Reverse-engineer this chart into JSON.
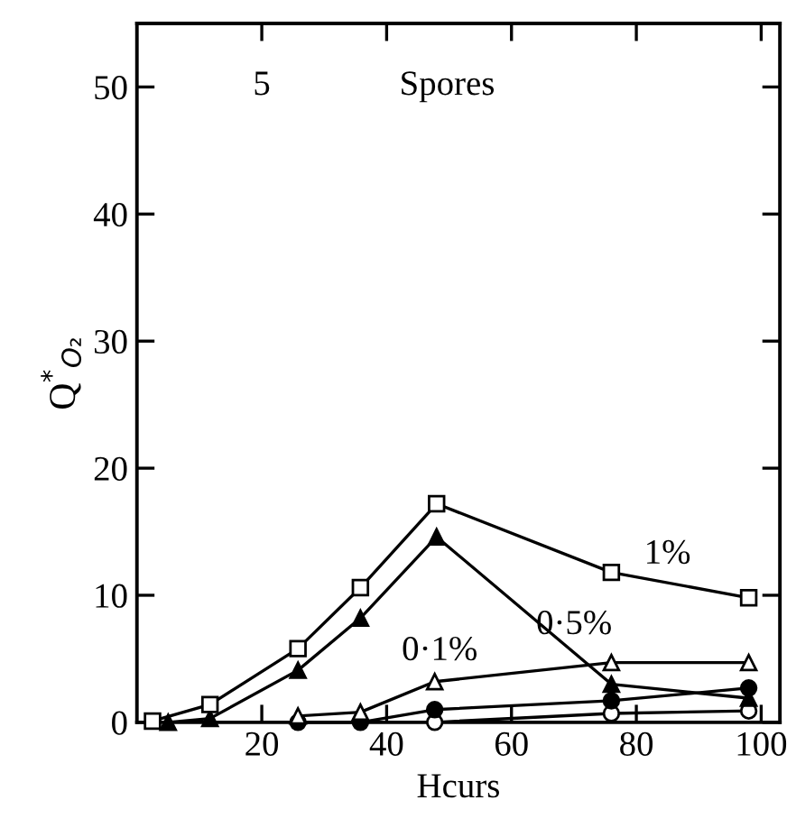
{
  "chart_data": {
    "type": "line",
    "xlabel": "Hcurs",
    "ylabel": "Q$^{*}$$_{O₂}$",
    "xlim": [
      0,
      103
    ],
    "ylim": [
      0,
      55
    ],
    "xticks": [
      20,
      40,
      60,
      80,
      100
    ],
    "yticks": [
      0,
      10,
      20,
      30,
      40,
      50
    ],
    "grid": false,
    "legend": false,
    "line_style": "solid",
    "series": [
      {
        "name": "1%",
        "color": "#000000",
        "marker": "square",
        "x": [
          2.5,
          11.7,
          25.8,
          35.8,
          48,
          76,
          98
        ],
        "values": [
          0.1,
          1.4,
          5.8,
          10.6,
          17.2,
          11.8,
          9.8
        ]
      },
      {
        "name": "0·5%",
        "color": "#000000",
        "marker": "triangle",
        "x": [
          5,
          11.7,
          25.8,
          35.8,
          48,
          76,
          98
        ],
        "values": [
          0,
          0.3,
          4.1,
          8.2,
          14.6,
          3.0,
          1.9
        ]
      },
      {
        "name": "0·1%",
        "color": "#000000",
        "marker": "triangle",
        "x": [
          25.8,
          35.8,
          47.7,
          76,
          98
        ],
        "values": [
          0.5,
          0.8,
          3.2,
          4.7,
          4.7
        ]
      },
      {
        "color": "#000000",
        "marker": "circle",
        "x": [
          25.8,
          35.8,
          47.7,
          76,
          98
        ],
        "values": [
          0,
          0,
          1.0,
          1.7,
          2.7
        ]
      },
      {
        "color": "#000000",
        "marker": "circle",
        "x": [
          47.7,
          76,
          98
        ],
        "values": [
          0,
          0.7,
          0.9
        ]
      }
    ],
    "annotations": [
      "5",
      "Spores"
    ]
  }
}
